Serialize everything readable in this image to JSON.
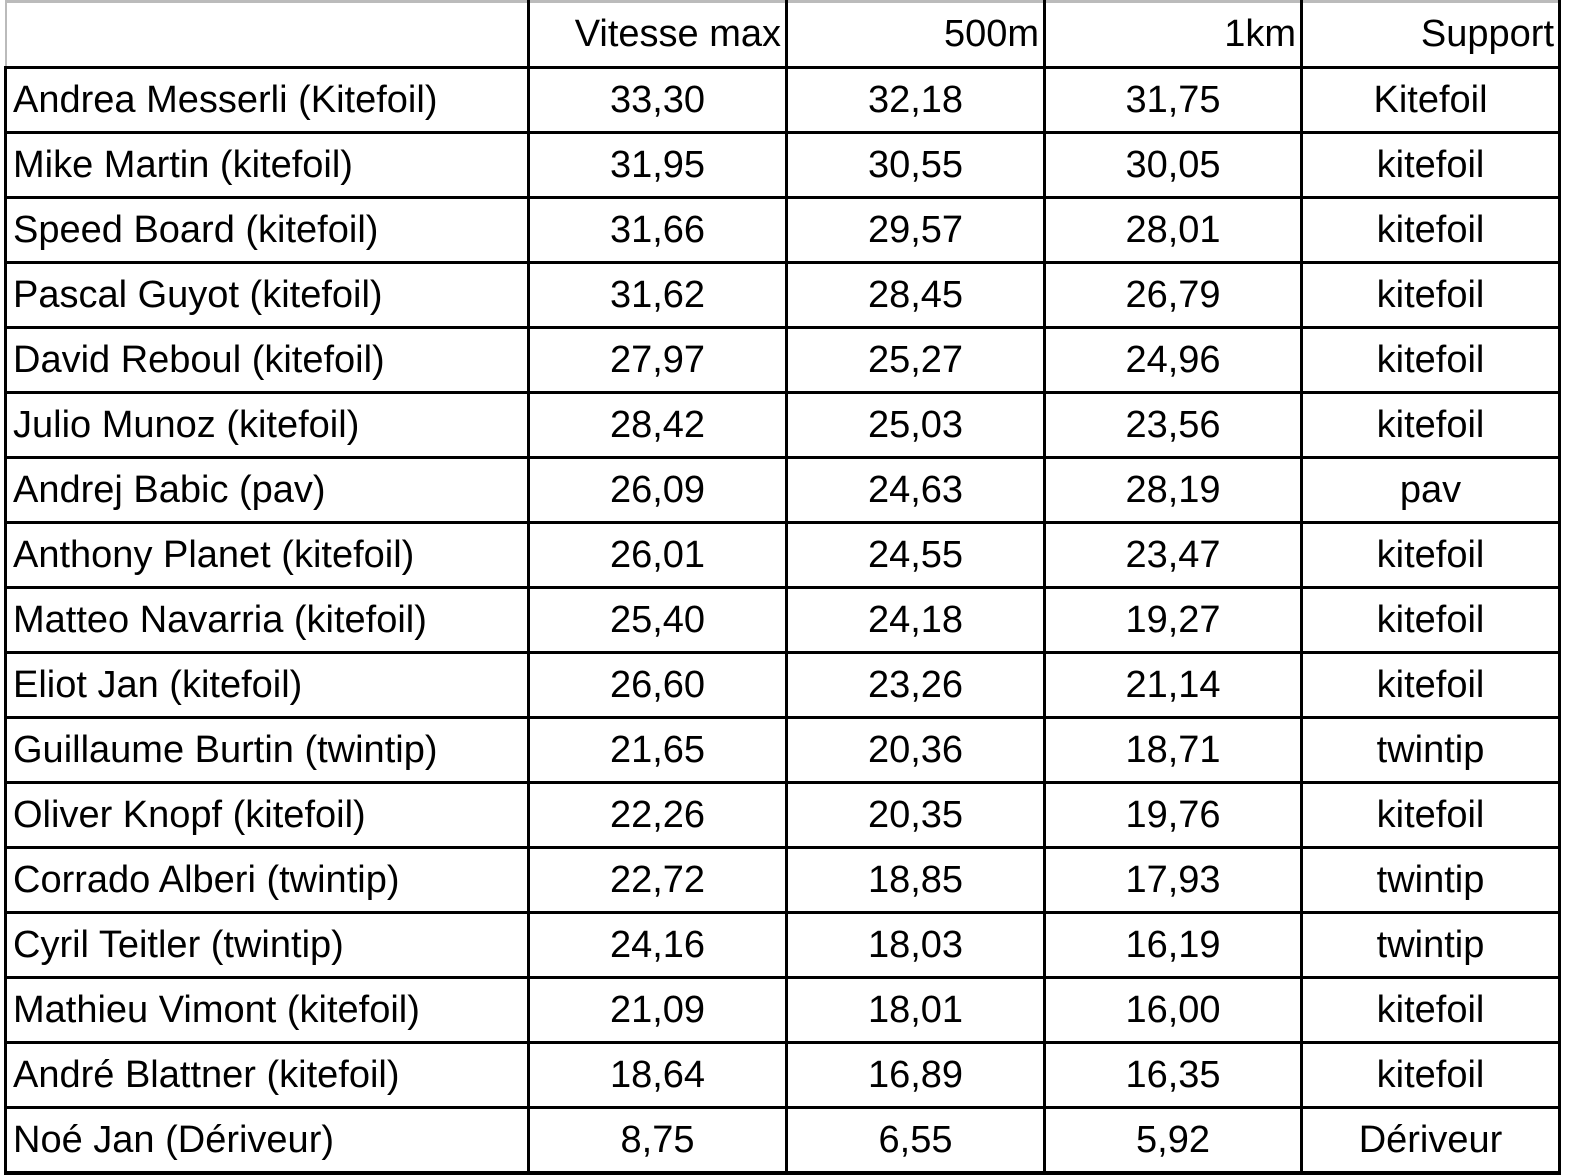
{
  "table": {
    "headers": [
      "",
      "Vitesse max",
      "500m",
      "1km",
      "Support"
    ],
    "rows": [
      [
        "Andrea Messerli (Kitefoil)",
        "33,30",
        "32,18",
        "31,75",
        "Kitefoil"
      ],
      [
        "Mike Martin (kitefoil)",
        "31,95",
        "30,55",
        "30,05",
        "kitefoil"
      ],
      [
        "Speed Board (kitefoil)",
        "31,66",
        "29,57",
        "28,01",
        "kitefoil"
      ],
      [
        "Pascal Guyot (kitefoil)",
        "31,62",
        "28,45",
        "26,79",
        "kitefoil"
      ],
      [
        "David Reboul (kitefoil)",
        "27,97",
        "25,27",
        "24,96",
        "kitefoil"
      ],
      [
        "Julio Munoz (kitefoil)",
        "28,42",
        "25,03",
        "23,56",
        "kitefoil"
      ],
      [
        "Andrej Babic (pav)",
        "26,09",
        "24,63",
        "28,19",
        "pav"
      ],
      [
        "Anthony Planet (kitefoil)",
        "26,01",
        "24,55",
        "23,47",
        "kitefoil"
      ],
      [
        "Matteo Navarria (kitefoil)",
        "25,40",
        "24,18",
        "19,27",
        "kitefoil"
      ],
      [
        "Eliot Jan (kitefoil)",
        "26,60",
        "23,26",
        "21,14",
        "kitefoil"
      ],
      [
        "Guillaume Burtin (twintip)",
        "21,65",
        "20,36",
        "18,71",
        "twintip"
      ],
      [
        "Oliver Knopf (kitefoil)",
        "22,26",
        "20,35",
        "19,76",
        "kitefoil"
      ],
      [
        "Corrado Alberi (twintip)",
        "22,72",
        "18,85",
        "17,93",
        "twintip"
      ],
      [
        "Cyril Teitler (twintip)",
        "24,16",
        "18,03",
        "16,19",
        "twintip"
      ],
      [
        "Mathieu Vimont (kitefoil)",
        "21,09",
        "18,01",
        "16,00",
        "kitefoil"
      ],
      [
        "André Blattner (kitefoil)",
        "18,64",
        "16,89",
        "16,35",
        "kitefoil"
      ],
      [
        "Noé Jan (Dériveur)",
        "8,75",
        "6,55",
        "5,92",
        "Dériveur"
      ]
    ]
  }
}
